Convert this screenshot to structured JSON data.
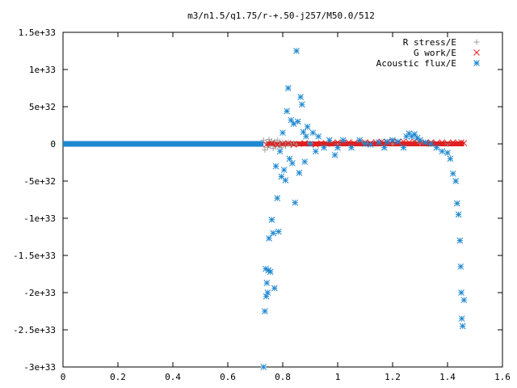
{
  "chart_data": {
    "type": "scatter",
    "title": "m3/n1.5/q1.75/r-+.50-j257/M50.0/512",
    "xlabel": "",
    "ylabel": "",
    "xlim": [
      0,
      1.6
    ],
    "ylim": [
      -3e+33,
      1.5e+33
    ],
    "x_ticks": [
      {
        "value": 0,
        "label": "0"
      },
      {
        "value": 0.2,
        "label": "0.2"
      },
      {
        "value": 0.4,
        "label": "0.4"
      },
      {
        "value": 0.6,
        "label": "0.6"
      },
      {
        "value": 0.8,
        "label": "0.8"
      },
      {
        "value": 1.0,
        "label": "1"
      },
      {
        "value": 1.2,
        "label": "1.2"
      },
      {
        "value": 1.4,
        "label": "1.4"
      },
      {
        "value": 1.6,
        "label": "1.6"
      }
    ],
    "y_ticks": [
      {
        "value": 1.5e+33,
        "label": "1.5e+33"
      },
      {
        "value": 1e+33,
        "label": "1e+33"
      },
      {
        "value": 5e+32,
        "label": "5e+32"
      },
      {
        "value": 0,
        "label": "0"
      },
      {
        "value": -5e+32,
        "label": "-5e+32"
      },
      {
        "value": -1e+33,
        "label": "-1e+33"
      },
      {
        "value": -1.5e+33,
        "label": "-1.5e+33"
      },
      {
        "value": -2e+33,
        "label": "-2e+33"
      },
      {
        "value": -2.5e+33,
        "label": "-2.5e+33"
      },
      {
        "value": -3e+33,
        "label": "-3e+33"
      }
    ],
    "grid": false,
    "legend_position": "top-right",
    "series": [
      {
        "name": "R stress/E",
        "marker": "plus",
        "color": "#a0a0a0",
        "points": [
          [
            0.73,
            5e+31
          ],
          [
            0.735,
            -8e+31
          ],
          [
            0.74,
            2e+31
          ],
          [
            0.745,
            -5e+31
          ],
          [
            0.75,
            6e+31
          ],
          [
            0.755,
            -3e+31
          ],
          [
            0.76,
            4e+31
          ],
          [
            0.765,
            -6e+31
          ],
          [
            0.77,
            3e+31
          ],
          [
            0.775,
            -4e+31
          ],
          [
            0.78,
            5e+31
          ],
          [
            0.785,
            -2e+31
          ],
          [
            0.79,
            3e+31
          ],
          [
            0.795,
            -5e+31
          ],
          [
            0.8,
            2e+31
          ],
          [
            0.81,
            -3e+31
          ],
          [
            0.82,
            2e+31
          ],
          [
            0.83,
            -2e+31
          ],
          [
            0.84,
            1e+31
          ],
          [
            0.85,
            -1e+31
          ],
          [
            0.9,
            1e+31
          ],
          [
            1.0,
            0
          ],
          [
            1.1,
            1e+31
          ],
          [
            1.2,
            0
          ],
          [
            1.3,
            1e+31
          ],
          [
            1.4,
            0
          ]
        ]
      },
      {
        "name": "G work/E",
        "marker": "cross",
        "color": "#e02020",
        "points": [
          [
            0.74,
            -1e+31
          ],
          [
            0.76,
            1e+31
          ],
          [
            0.78,
            -1e+31
          ],
          [
            0.8,
            0
          ],
          [
            0.82,
            1e+31
          ],
          [
            0.84,
            -1e+31
          ],
          [
            0.86,
            0
          ],
          [
            0.88,
            1e+31
          ],
          [
            0.9,
            0
          ],
          [
            0.92,
            -1e+31
          ],
          [
            0.94,
            1e+31
          ],
          [
            0.96,
            0
          ],
          [
            0.98,
            1e+31
          ],
          [
            1.0,
            2e+31
          ],
          [
            1.02,
            1e+31
          ],
          [
            1.04,
            2e+31
          ],
          [
            1.06,
            1e+31
          ],
          [
            1.08,
            2e+31
          ],
          [
            1.1,
            2e+31
          ],
          [
            1.12,
            1e+31
          ],
          [
            1.14,
            2e+31
          ],
          [
            1.16,
            3e+31
          ],
          [
            1.18,
            2e+31
          ],
          [
            1.2,
            3e+31
          ],
          [
            1.22,
            2e+31
          ],
          [
            1.24,
            3e+31
          ],
          [
            1.26,
            2e+31
          ],
          [
            1.28,
            3e+31
          ],
          [
            1.3,
            2e+31
          ],
          [
            1.32,
            1e+31
          ],
          [
            1.34,
            2e+31
          ],
          [
            1.36,
            1e+31
          ],
          [
            1.38,
            2e+31
          ],
          [
            1.4,
            1e+31
          ],
          [
            1.42,
            2e+31
          ],
          [
            1.44,
            1e+31
          ],
          [
            1.45,
            2e+31
          ],
          [
            1.46,
            1e+31
          ]
        ]
      },
      {
        "name": "Acoustic flux/E",
        "marker": "star",
        "color": "#1e88d0",
        "points": [
          [
            0.73,
            -3e+33
          ],
          [
            0.735,
            -2.25e+33
          ],
          [
            0.738,
            -1.68e+33
          ],
          [
            0.74,
            -2.05e+33
          ],
          [
            0.742,
            -1.87e+33
          ],
          [
            0.745,
            -2e+33
          ],
          [
            0.748,
            -1.7e+33
          ],
          [
            0.75,
            -1.27e+33
          ],
          [
            0.755,
            -1.72e+33
          ],
          [
            0.76,
            -1.02e+33
          ],
          [
            0.765,
            -1.2e+33
          ],
          [
            0.77,
            -1.94e+33
          ],
          [
            0.775,
            -3e+32
          ],
          [
            0.78,
            -7.3e+32
          ],
          [
            0.785,
            -1.18e+33
          ],
          [
            0.79,
            -1e+32
          ],
          [
            0.795,
            -4.4e+32
          ],
          [
            0.8,
            1.5e+32
          ],
          [
            0.805,
            -3.5e+32
          ],
          [
            0.81,
            -4.9e+32
          ],
          [
            0.815,
            4.4e+32
          ],
          [
            0.82,
            7.5e+32
          ],
          [
            0.825,
            -2e+32
          ],
          [
            0.83,
            3.2e+32
          ],
          [
            0.835,
            -2.6e+32
          ],
          [
            0.84,
            2.7e+32
          ],
          [
            0.845,
            -7.9e+32
          ],
          [
            0.85,
            1.25e+33
          ],
          [
            0.855,
            3e+32
          ],
          [
            0.86,
            -3.9e+32
          ],
          [
            0.865,
            6.3e+32
          ],
          [
            0.87,
            5.3e+32
          ],
          [
            0.875,
            1.6e+32
          ],
          [
            0.88,
            -2.4e+32
          ],
          [
            0.885,
            1e+32
          ],
          [
            0.89,
            2.3e+32
          ],
          [
            0.9,
            0
          ],
          [
            0.91,
            1.5e+32
          ],
          [
            0.92,
            -1e+32
          ],
          [
            0.93,
            1e+32
          ],
          [
            0.95,
            -5e+31
          ],
          [
            0.97,
            5e+31
          ],
          [
            0.99,
            -1.5e+32
          ],
          [
            1.0,
            -5e+31
          ],
          [
            1.02,
            5e+31
          ],
          [
            1.05,
            -5e+31
          ],
          [
            1.08,
            5e+31
          ],
          [
            1.1,
            0
          ],
          [
            1.12,
            -1e+31
          ],
          [
            1.15,
            2e+31
          ],
          [
            1.17,
            -5e+31
          ],
          [
            1.18,
            3e+31
          ],
          [
            1.2,
            5e+31
          ],
          [
            1.22,
            3e+31
          ],
          [
            1.24,
            -5e+31
          ],
          [
            1.25,
            1e+32
          ],
          [
            1.26,
            1.4e+32
          ],
          [
            1.27,
            1e+32
          ],
          [
            1.28,
            1.3e+32
          ],
          [
            1.29,
            8e+31
          ],
          [
            1.3,
            5e+31
          ],
          [
            1.32,
            2e+31
          ],
          [
            1.34,
            0
          ],
          [
            1.36,
            -5e+31
          ],
          [
            1.38,
            -1e+32
          ],
          [
            1.4,
            -1.2e+32
          ],
          [
            1.41,
            -2e+32
          ],
          [
            1.42,
            -4e+32
          ],
          [
            1.43,
            -5e+32
          ],
          [
            1.435,
            -8e+32
          ],
          [
            1.44,
            -9.5e+32
          ],
          [
            1.445,
            -1.3e+33
          ],
          [
            1.448,
            -1.65e+33
          ],
          [
            1.45,
            -2e+33
          ],
          [
            1.452,
            -2.35e+33
          ],
          [
            1.455,
            -2.45e+33
          ],
          [
            1.46,
            -2.1e+33
          ]
        ]
      }
    ]
  }
}
